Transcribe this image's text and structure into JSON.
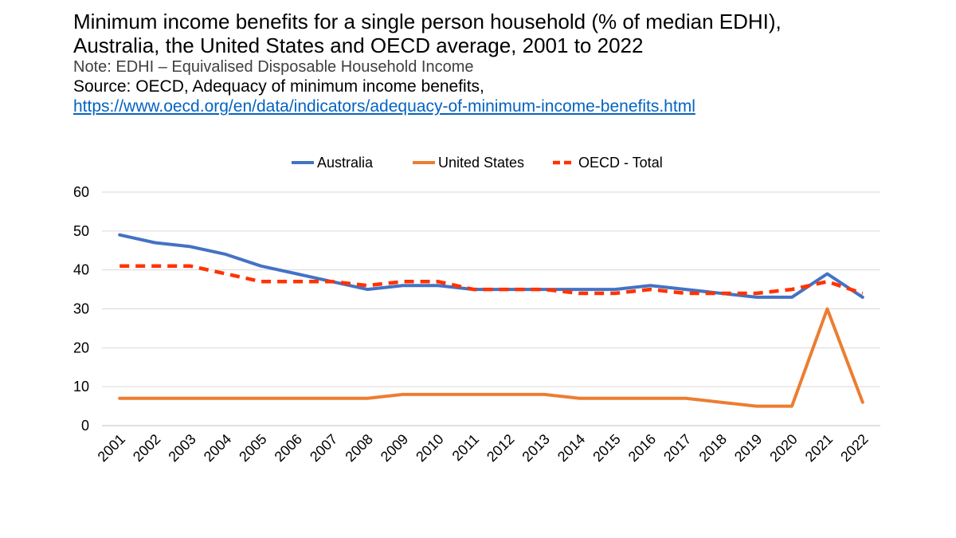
{
  "header": {
    "title_line1": "Minimum income benefits for a single person household (% of median EDHI),",
    "title_line2": "Australia, the United States and OECD average, 2001 to 2022",
    "note": "Note: EDHI – Equivalised Disposable Household Income",
    "source": "Source: OECD, Adequacy of minimum income benefits,",
    "source_link": "https://www.oecd.org/en/data/indicators/adequacy-of-minimum-income-benefits.html"
  },
  "chart_data": {
    "type": "line",
    "title": "Minimum income benefits for a single person household (% of median EDHI), Australia, the United States and OECD average, 2001 to 2022",
    "xlabel": "",
    "ylabel": "",
    "ylim": [
      0,
      60
    ],
    "yticks": [
      0,
      10,
      20,
      30,
      40,
      50,
      60
    ],
    "grid": true,
    "legend_position": "top",
    "categories": [
      "2001",
      "2002",
      "2003",
      "2004",
      "2005",
      "2006",
      "2007",
      "2008",
      "2009",
      "2010",
      "2011",
      "2012",
      "2013",
      "2014",
      "2015",
      "2016",
      "2017",
      "2018",
      "2019",
      "2020",
      "2021",
      "2022"
    ],
    "series": [
      {
        "name": "Australia",
        "color": "#4472c4",
        "style": "solid",
        "values": [
          49,
          47,
          46,
          44,
          41,
          39,
          37,
          35,
          36,
          36,
          35,
          35,
          35,
          35,
          35,
          36,
          35,
          34,
          33,
          33,
          39,
          33
        ]
      },
      {
        "name": "United States",
        "color": "#ed7d31",
        "style": "solid",
        "values": [
          7,
          7,
          7,
          7,
          7,
          7,
          7,
          7,
          8,
          8,
          8,
          8,
          8,
          7,
          7,
          7,
          7,
          6,
          5,
          5,
          30,
          6
        ]
      },
      {
        "name": "OECD - Total",
        "color": "#ff3300",
        "style": "dashed",
        "values": [
          41,
          41,
          41,
          39,
          37,
          37,
          37,
          36,
          37,
          37,
          35,
          35,
          35,
          34,
          34,
          35,
          34,
          34,
          34,
          35,
          37,
          34
        ]
      }
    ]
  }
}
